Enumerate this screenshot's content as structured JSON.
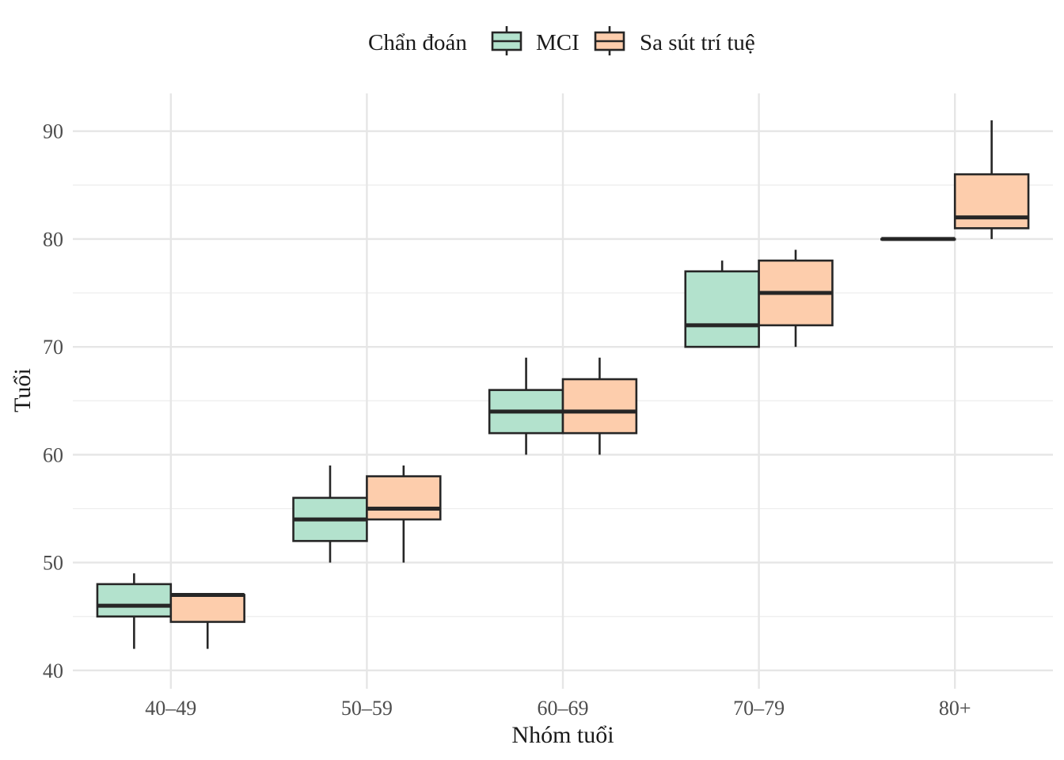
{
  "chart_data": {
    "type": "boxplot",
    "xlabel": "Nhóm tuổi",
    "ylabel": "Tuổi",
    "ylim": [
      38.3,
      93.5
    ],
    "y_ticks": [
      40,
      50,
      60,
      70,
      80,
      90
    ],
    "y_tick_labels": [
      "40",
      "50",
      "60",
      "70",
      "80",
      "90"
    ],
    "categories": [
      "40–49",
      "50–59",
      "60–69",
      "70–79",
      "80+"
    ],
    "grid": true,
    "legend": {
      "title": "Chẩn đoán",
      "position": "top"
    },
    "series": [
      {
        "name": "MCI",
        "color": "#b3e2cd",
        "boxes": [
          {
            "min": 42,
            "q1": 45,
            "median": 46,
            "q3": 48,
            "max": 49
          },
          {
            "min": 50,
            "q1": 52,
            "median": 54,
            "q3": 56,
            "max": 59
          },
          {
            "min": 60,
            "q1": 62,
            "median": 64,
            "q3": 66,
            "max": 69
          },
          {
            "min": 70,
            "q1": 70,
            "median": 72,
            "q3": 77,
            "max": 78
          },
          {
            "min": 80,
            "q1": 80,
            "median": 80,
            "q3": 80,
            "max": 80
          }
        ]
      },
      {
        "name": "Sa sút trí tuệ",
        "color": "#fdcdac",
        "boxes": [
          {
            "min": 42,
            "q1": 44.5,
            "median": 47,
            "q3": 47,
            "max": 47
          },
          {
            "min": 50,
            "q1": 54,
            "median": 55,
            "q3": 58,
            "max": 59
          },
          {
            "min": 60,
            "q1": 62,
            "median": 64,
            "q3": 67,
            "max": 69
          },
          {
            "min": 70,
            "q1": 72,
            "median": 75,
            "q3": 78,
            "max": 79
          },
          {
            "min": 80,
            "q1": 81,
            "median": 82,
            "q3": 86,
            "max": 91
          }
        ]
      }
    ]
  }
}
